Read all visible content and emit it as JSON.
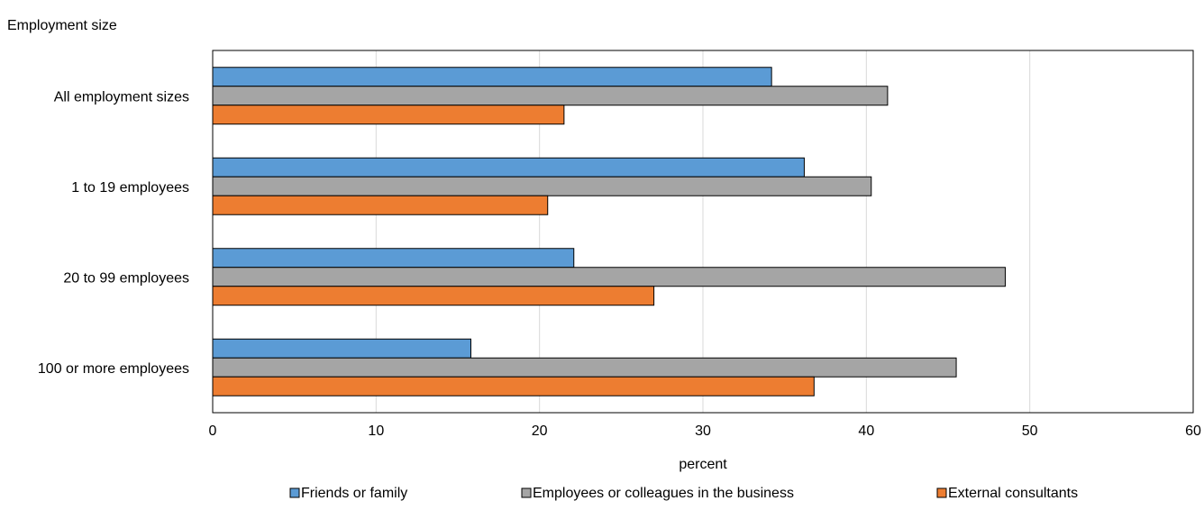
{
  "chart_data": {
    "type": "bar",
    "orientation": "horizontal",
    "ytitle": "Employment size",
    "xlabel": "percent",
    "categories": [
      "All employment sizes",
      "1 to 19 employees",
      "20 to 99 employees",
      "100 or more employees"
    ],
    "series": [
      {
        "name": "Friends or family",
        "color": "#5b9bd5",
        "values": [
          34.2,
          36.2,
          22.1,
          15.8
        ]
      },
      {
        "name": "Employees or colleagues in the business",
        "color": "#a5a5a5",
        "values": [
          41.3,
          40.3,
          48.5,
          45.5
        ]
      },
      {
        "name": "External consultants",
        "color": "#ed7d31",
        "values": [
          21.5,
          20.5,
          27.0,
          36.8
        ]
      }
    ],
    "xlim": [
      0,
      60
    ],
    "xticks": [
      0,
      10,
      20,
      30,
      40,
      50,
      60
    ],
    "grid": true,
    "legend_position": "bottom"
  }
}
